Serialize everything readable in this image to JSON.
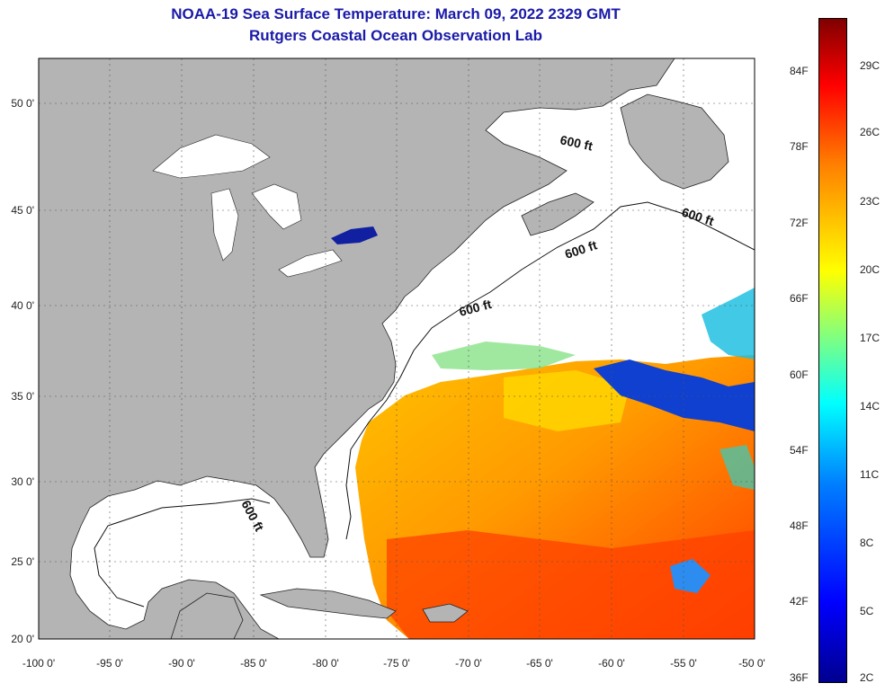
{
  "header": {
    "title": "NOAA-19 Sea Surface Temperature:  March 09, 2022 2329 GMT",
    "subtitle": "Rutgers Coastal Ocean Observation Lab"
  },
  "map": {
    "lon_range": [
      -100,
      -50
    ],
    "lat_range": [
      20,
      52.5
    ],
    "lon_ticks": [
      "-100 0'",
      "-95 0'",
      "-90 0'",
      "-85 0'",
      "-80 0'",
      "-75 0'",
      "-70 0'",
      "-65 0'",
      "-60 0'",
      "-55 0'",
      "-50 0'"
    ],
    "lat_ticks": [
      "50 0'",
      "45 0'",
      "40 0'",
      "35 0'",
      "30 0'",
      "25 0'",
      "20 0'"
    ],
    "isobath_labels": [
      "600 ft",
      "600 ft",
      "600 ft",
      "600 ft",
      "600 ft"
    ],
    "colors": {
      "land": "#b4b4b4",
      "no_data": "#ffffff",
      "grid": "#555555"
    }
  },
  "colorbar": {
    "fahrenheit_labels": [
      "84F",
      "78F",
      "72F",
      "66F",
      "60F",
      "54F",
      "48F",
      "42F",
      "36F"
    ],
    "celsius_labels": [
      "29C",
      "26C",
      "23C",
      "20C",
      "17C",
      "14C",
      "11C",
      "8C",
      "5C",
      "2C"
    ]
  }
}
